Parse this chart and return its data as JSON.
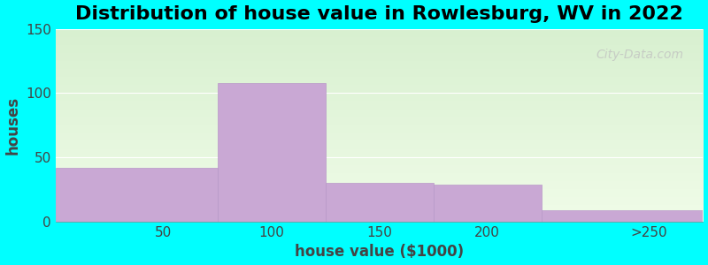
{
  "title": "Distribution of house value in Rowlesburg, WV in 2022",
  "xlabel": "house value ($1000)",
  "ylabel": "houses",
  "bar_heights": [
    42,
    108,
    30,
    29,
    9
  ],
  "bar_color": "#c9a8d4",
  "bar_edgecolor": "#b898c8",
  "bar_edges": [
    0,
    75,
    125,
    175,
    225,
    300
  ],
  "tick_positions": [
    50,
    100,
    150,
    200,
    275
  ],
  "tick_labels": [
    "50",
    "100",
    "150",
    "200",
    ">250"
  ],
  "ylim": [
    0,
    150
  ],
  "xlim": [
    0,
    300
  ],
  "yticks": [
    0,
    50,
    100,
    150
  ],
  "background_color": "#00ffff",
  "plot_bg_color_top": "#d8f0d0",
  "plot_bg_color_bottom": "#f0fce8",
  "title_fontsize": 16,
  "axis_fontsize": 12,
  "tick_fontsize": 11,
  "watermark_text": "City-Data.com"
}
